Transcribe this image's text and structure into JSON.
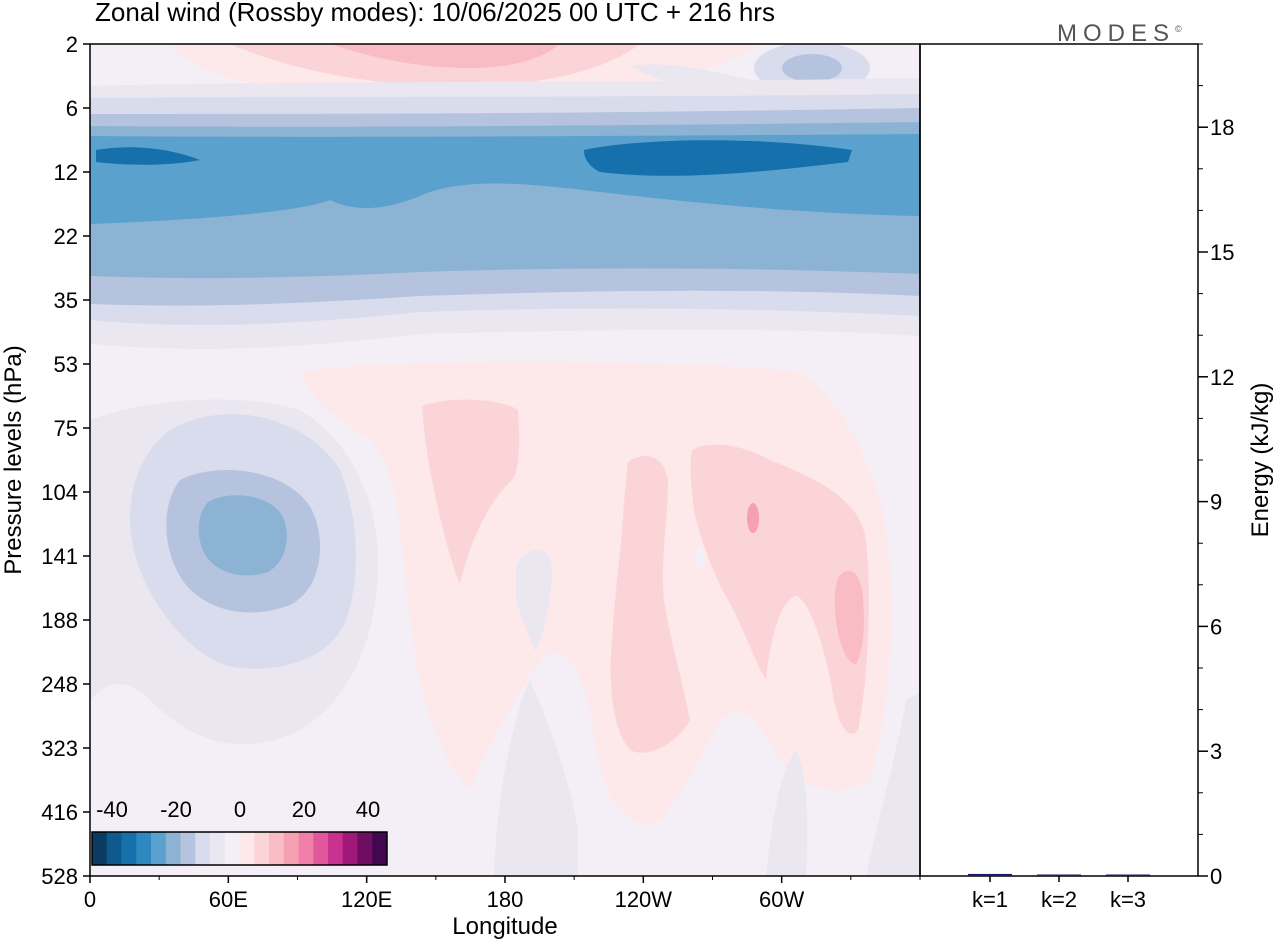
{
  "title": "Zonal wind (Rossby modes):  10/06/2025  00 UTC  + 216 hrs",
  "logo": "MODES",
  "logo_mark": "©",
  "colors": {
    "neg": [
      "#0b3b63",
      "#0d5a8f",
      "#1670ac",
      "#2f88bf",
      "#5aa2cd",
      "#8db3d4",
      "#b5c3de",
      "#d8dcec",
      "#ebe7f1"
    ],
    "zero": "#f4eff6",
    "pos": [
      "#fde8ea",
      "#fbd4d8",
      "#f9bcc4",
      "#f6a0b4",
      "#f080aa",
      "#e1579b",
      "#c8318e",
      "#a0187a",
      "#6f0d63",
      "#430752"
    ]
  },
  "chart_data": [
    {
      "type": "heatmap",
      "xlabel": "Longitude",
      "ylabel": "Pressure levels (hPa)",
      "x_ticks": [
        "0",
        "60E",
        "120E",
        "180",
        "120W",
        "60W"
      ],
      "x_tick_values": [
        0,
        60,
        120,
        180,
        240,
        300
      ],
      "xlim": [
        0,
        360
      ],
      "y_ticks": [
        "2",
        "6",
        "12",
        "22",
        "35",
        "53",
        "75",
        "104",
        "141",
        "188",
        "248",
        "323",
        "416",
        "528"
      ],
      "colorbar": {
        "ticks": [
          "-40",
          "-20",
          "0",
          "20",
          "40"
        ],
        "range": [
          -40,
          40
        ]
      },
      "features": [
        {
          "name": "stratospheric easterly band",
          "level_range": [
            "6",
            "35"
          ],
          "min_value": -30
        },
        {
          "name": "easterly jet core west",
          "lon": 20,
          "level": "10",
          "value": -32
        },
        {
          "name": "easterly jet core east",
          "lon": 265,
          "level": "10",
          "value": -32
        },
        {
          "name": "upper westerly",
          "lon": 170,
          "level": "2",
          "value": 10
        },
        {
          "name": "tropospheric easterly cell",
          "lon": 60,
          "level": "120",
          "value": -20
        },
        {
          "name": "westerly tongue",
          "lon": 150,
          "level": "110",
          "value": 6
        },
        {
          "name": "westerly region",
          "lon": 290,
          "level": "110",
          "value": 8
        },
        {
          "name": "westerly maximum",
          "lon": 330,
          "level": "170",
          "value": 12
        }
      ]
    },
    {
      "type": "bar",
      "ylabel": "Energy (kJ/kg)",
      "categories": [
        "k=1",
        "k=2",
        "k=3"
      ],
      "values": [
        0.05,
        0.02,
        0.01
      ],
      "ylim": [
        0,
        20
      ],
      "y_ticks": [
        "0",
        "3",
        "6",
        "9",
        "12",
        "15",
        "18"
      ],
      "y_tick_values": [
        0,
        3,
        6,
        9,
        12,
        15,
        18
      ],
      "color": "#1a1a6e"
    }
  ]
}
